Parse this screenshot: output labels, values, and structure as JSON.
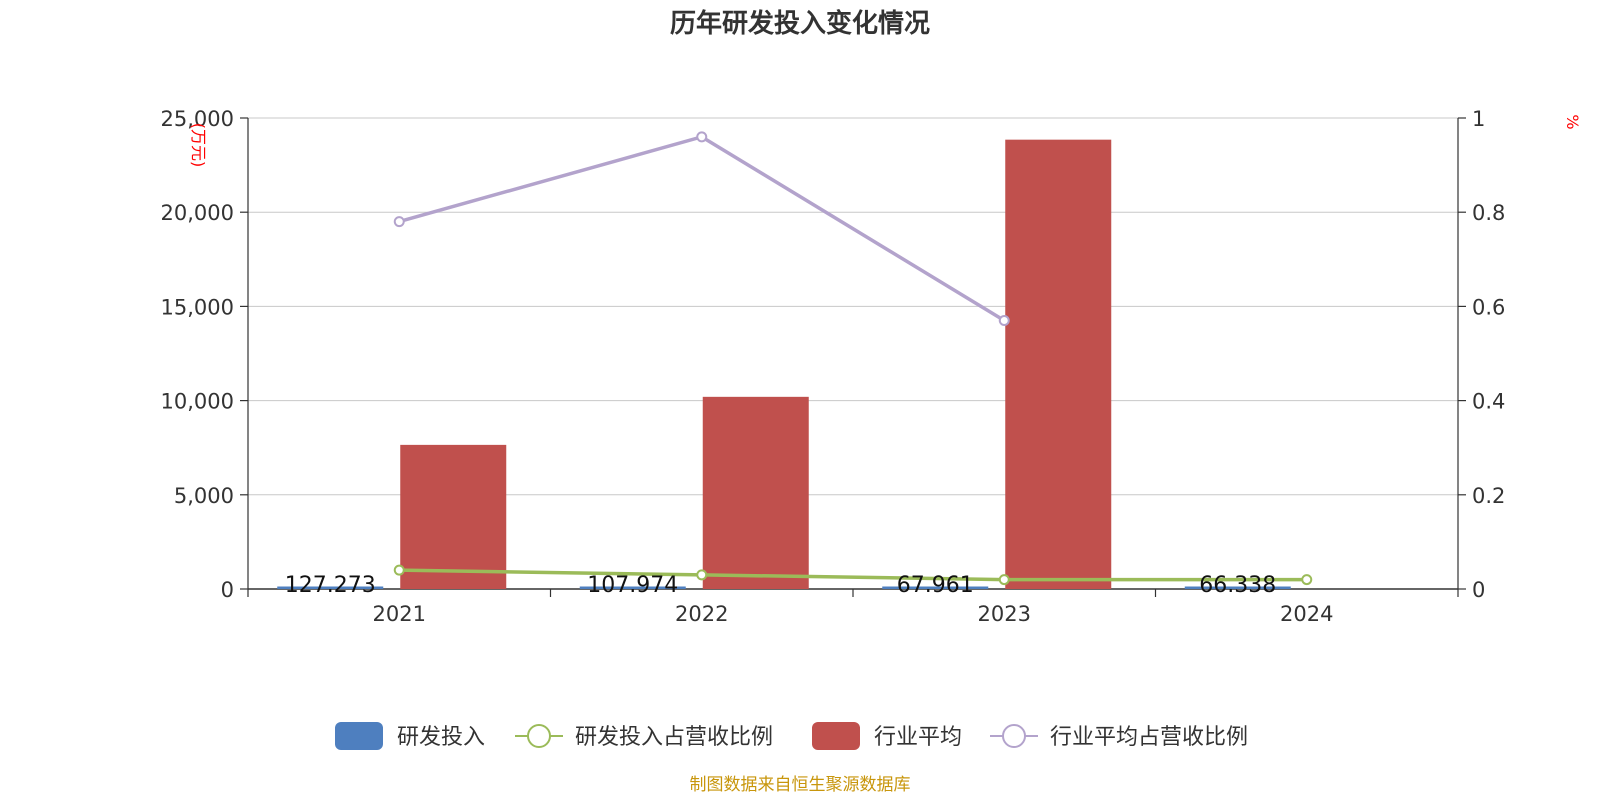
{
  "chart_data": {
    "type": "bar",
    "title": "历年研发投入变化情况",
    "categories": [
      "2021",
      "2022",
      "2023",
      "2024"
    ],
    "y_left": {
      "name": "(万元)",
      "ylim": [
        0,
        25000
      ],
      "ticks": [
        0,
        5000,
        10000,
        15000,
        20000,
        25000
      ],
      "tick_labels": [
        "0",
        "5,000",
        "10,000",
        "15,000",
        "20,000",
        "25,000"
      ]
    },
    "y_right": {
      "name": "%",
      "ylim": [
        0,
        1
      ],
      "ticks": [
        0,
        0.2,
        0.4,
        0.6,
        0.8,
        1
      ],
      "tick_labels": [
        "0",
        "0.2",
        "0.4",
        "0.6",
        "0.8",
        "1"
      ]
    },
    "series": [
      {
        "name": "研发投入",
        "type": "bar",
        "axis": "left",
        "color": "#4e7fbf",
        "values": [
          127.273,
          107.974,
          67.961,
          66.338
        ],
        "labels": [
          "127.273",
          "107.974",
          "67.961",
          "66.338"
        ]
      },
      {
        "name": "研发投入占营收比例",
        "type": "line",
        "axis": "right",
        "color": "#9bbb59",
        "values": [
          0.04,
          0.03,
          0.02,
          0.02
        ]
      },
      {
        "name": "行业平均",
        "type": "bar",
        "axis": "left",
        "color": "#c0504d",
        "values": [
          7650,
          10200,
          23850,
          null
        ]
      },
      {
        "name": "行业平均占营收比例",
        "type": "line",
        "axis": "right",
        "color": "#b3a3cc",
        "values": [
          0.78,
          0.96,
          0.57,
          null
        ]
      }
    ],
    "grid": true,
    "legend_position": "bottom-center"
  },
  "source": "制图数据来自恒生聚源数据库",
  "colors": {
    "axis_name": "#ff0000",
    "source": "#c8960c",
    "grid": "#c8c8c8",
    "axis": "#333333"
  }
}
